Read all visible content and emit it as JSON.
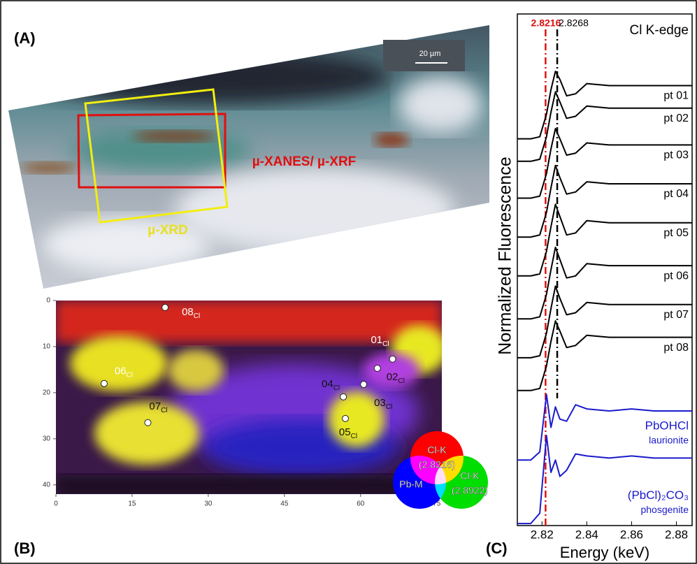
{
  "panels": {
    "a_label": "(A)",
    "b_label": "(B)",
    "c_label": "(C)"
  },
  "photo": {
    "scale_bar": "20 µm",
    "xanes_label": "µ-XANES/ µ-XRF",
    "xrd_label": "µ-XRD"
  },
  "chart_data": [
    {
      "type": "scatter",
      "x": [
        66.3,
        63.3,
        60.6,
        56.6,
        57,
        9.5,
        18.1,
        21.5
      ],
      "values": [
        12.7,
        14.7,
        18.2,
        20.9,
        25.6,
        18,
        26.5,
        1.5
      ],
      "point_labels": [
        "01",
        "02",
        "03",
        "04",
        "05",
        "06",
        "07",
        "08"
      ],
      "label_subscript": "Cl",
      "xlim": [
        0,
        76
      ],
      "ylim": [
        42,
        0
      ],
      "xticks": [
        0,
        15,
        30,
        45,
        60,
        75
      ],
      "yticks": [
        0,
        10,
        20,
        30,
        40
      ],
      "legend": [
        {
          "name": "Cl-K",
          "sub": "(2.8216)",
          "color": "#ff0000"
        },
        {
          "name": "Pb-M",
          "color": "#0000ff"
        },
        {
          "name": "Cl-K",
          "sub": "(2.8922)",
          "color": "#00dd00"
        }
      ]
    },
    {
      "type": "line",
      "xlabel": "Energy (keV)",
      "ylabel": "Normalized Fluorescence",
      "annotation": "Cl K-edge",
      "x": [
        2.809,
        2.815,
        2.819,
        2.822,
        2.824,
        2.826,
        2.828,
        2.831,
        2.835,
        2.84,
        2.85,
        2.86,
        2.87,
        2.887
      ],
      "xlim": [
        2.809,
        2.887
      ],
      "ylim": [
        0,
        12.5
      ],
      "xticks": [
        2.82,
        2.84,
        2.86,
        2.88
      ],
      "reference_lines": [
        {
          "value": 2.8216,
          "color": "#dd1111"
        },
        {
          "value": 2.8268,
          "color": "#000000"
        }
      ],
      "series": [
        {
          "name": "pt 01",
          "color": "#000000",
          "values": [
            9.45,
            9.45,
            9.5,
            10.05,
            10.65,
            11.1,
            10.9,
            10.5,
            10.55,
            10.8,
            10.75,
            10.75,
            10.75,
            10.75
          ]
        },
        {
          "name": "pt 02",
          "color": "#000000",
          "values": [
            8.9,
            8.9,
            8.95,
            9.5,
            10.1,
            10.6,
            10.35,
            9.95,
            10.0,
            10.25,
            10.2,
            10.2,
            10.2,
            10.2
          ]
        },
        {
          "name": "pt 03",
          "color": "#000000",
          "values": [
            8.0,
            8.0,
            8.05,
            8.6,
            9.2,
            9.7,
            9.45,
            9.05,
            9.1,
            9.35,
            9.3,
            9.3,
            9.3,
            9.3
          ]
        },
        {
          "name": "pt 04",
          "color": "#000000",
          "values": [
            7.05,
            7.05,
            7.1,
            7.65,
            8.25,
            8.8,
            8.5,
            8.1,
            8.15,
            8.4,
            8.35,
            8.35,
            8.35,
            8.35
          ]
        },
        {
          "name": "pt 05",
          "color": "#000000",
          "values": [
            6.1,
            6.1,
            6.15,
            6.7,
            7.3,
            7.85,
            7.55,
            7.1,
            7.15,
            7.45,
            7.4,
            7.4,
            7.4,
            7.4
          ]
        },
        {
          "name": "pt 06",
          "color": "#000000",
          "values": [
            5.05,
            5.05,
            5.1,
            5.65,
            6.25,
            6.8,
            6.5,
            6.05,
            6.1,
            6.4,
            6.35,
            6.35,
            6.35,
            6.35
          ]
        },
        {
          "name": "pt 07",
          "color": "#000000",
          "values": [
            4.1,
            4.1,
            4.15,
            4.7,
            5.3,
            5.85,
            5.55,
            5.15,
            5.2,
            5.45,
            5.4,
            5.4,
            5.4,
            5.4
          ]
        },
        {
          "name": "pt 08",
          "color": "#000000",
          "values": [
            3.3,
            3.3,
            3.35,
            3.9,
            4.5,
            5.0,
            4.75,
            4.35,
            4.4,
            4.65,
            4.6,
            4.6,
            4.6,
            4.6
          ]
        },
        {
          "name": "PbOHCl",
          "sublabel": "laurionite",
          "color": "#1a1acc",
          "values": [
            1.6,
            1.6,
            1.8,
            3.2,
            2.4,
            2.9,
            2.6,
            2.55,
            2.95,
            2.85,
            2.8,
            2.85,
            2.8,
            2.8
          ]
        },
        {
          "name": "(PbCl)₂CO₃",
          "sublabel": "phosgenite",
          "color": "#1a1acc",
          "values": [
            0.05,
            0.05,
            0.3,
            2.2,
            1.3,
            1.6,
            1.2,
            1.35,
            1.75,
            1.7,
            1.65,
            1.7,
            1.65,
            1.65
          ]
        }
      ]
    }
  ]
}
